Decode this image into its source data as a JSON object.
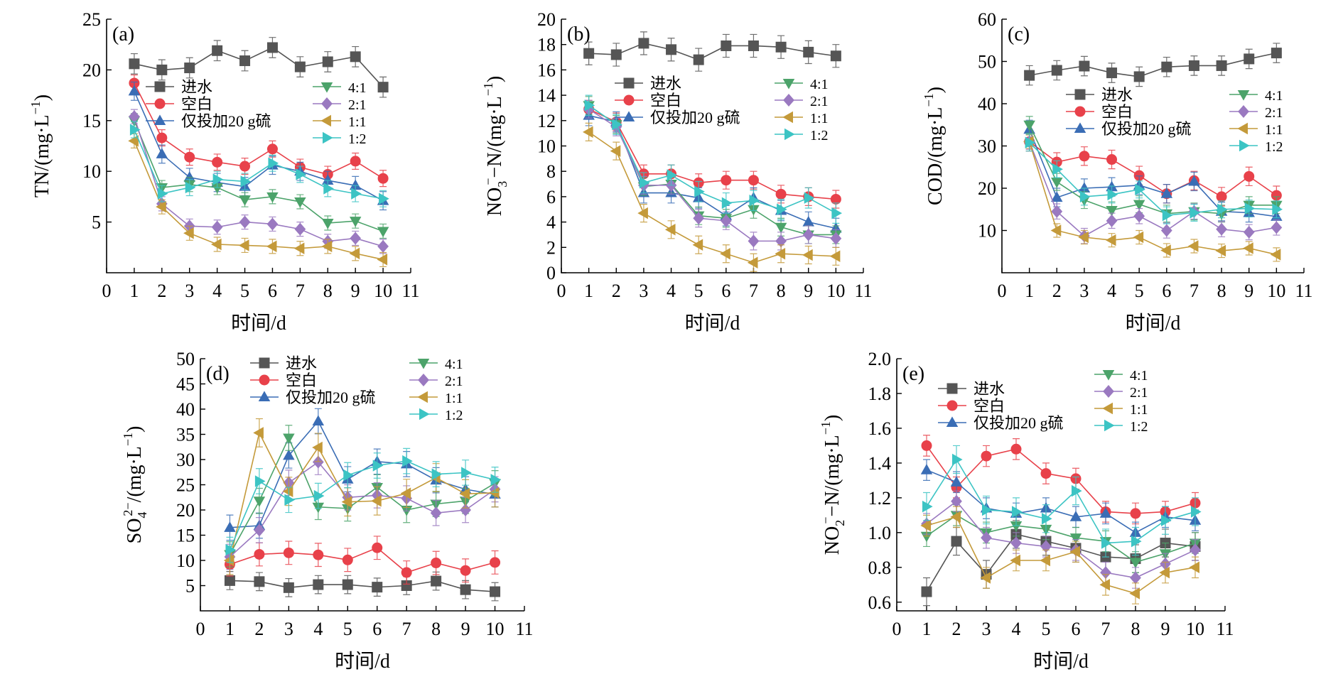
{
  "figure": {
    "palette": {
      "进水": "#555555",
      "空白": "#E8414A",
      "仅投加20 g硫": "#3A6DB5",
      "4:1": "#4CA36A",
      "2:1": "#9A79C0",
      "1:1": "#C49A3A",
      "1:2": "#3CC4C4"
    },
    "markers": {
      "进水": "square",
      "空白": "circle",
      "仅投加20 g硫": "triangle-up",
      "4:1": "triangle-down",
      "2:1": "diamond",
      "1:1": "triangle-left",
      "1:2": "triangle-right"
    }
  },
  "chart_data": [
    {
      "id": "a",
      "type": "line",
      "panel_label": "(a)",
      "ylabel_main": "TN/(mg·L",
      "ylabel_sup": "−1",
      "ylabel_end": ")",
      "xlabel": "时间/d",
      "xlim": [
        0,
        11
      ],
      "ylim": [
        0,
        25
      ],
      "xticks": [
        0,
        1,
        2,
        3,
        4,
        5,
        6,
        7,
        8,
        9,
        10,
        11
      ],
      "yticks": [
        5,
        10,
        15,
        20,
        25
      ],
      "x": [
        1,
        2,
        3,
        4,
        5,
        6,
        7,
        8,
        9,
        10
      ],
      "series": [
        {
          "name": "进水",
          "values": [
            20.6,
            20.0,
            20.2,
            21.9,
            20.9,
            22.2,
            20.3,
            20.8,
            21.3,
            18.3
          ],
          "err": 1.0
        },
        {
          "name": "空白",
          "values": [
            18.7,
            13.3,
            11.4,
            10.9,
            10.5,
            12.2,
            10.4,
            9.7,
            11.0,
            9.3
          ],
          "err": 0.8
        },
        {
          "name": "仅投加20 g硫",
          "values": [
            17.9,
            11.7,
            9.4,
            8.9,
            8.5,
            10.6,
            10.0,
            9.1,
            8.6,
            7.1
          ],
          "err": 0.9
        },
        {
          "name": "4:1",
          "values": [
            15.0,
            8.4,
            8.7,
            8.4,
            7.2,
            7.5,
            7.0,
            4.9,
            5.1,
            4.1
          ],
          "err": 0.7
        },
        {
          "name": "2:1",
          "values": [
            15.4,
            6.8,
            4.6,
            4.5,
            5.0,
            4.8,
            4.3,
            3.1,
            3.4,
            2.6
          ],
          "err": 0.7
        },
        {
          "name": "1:1",
          "values": [
            13.0,
            6.5,
            3.9,
            2.8,
            2.7,
            2.6,
            2.4,
            2.6,
            1.9,
            1.3
          ],
          "err": 0.7
        },
        {
          "name": "1:2",
          "values": [
            14.1,
            7.8,
            8.4,
            9.2,
            9.0,
            10.8,
            9.7,
            8.3,
            7.8,
            7.3
          ],
          "err": 0.8
        }
      ],
      "legend": {
        "left": [
          "进水",
          "空白",
          "仅投加20 g硫"
        ],
        "right": [
          "4:1",
          "2:1",
          "1:1",
          "1:2"
        ]
      }
    },
    {
      "id": "b",
      "type": "line",
      "panel_label": "(b)",
      "ylabel_main": "NO",
      "ylabel_sub": "3",
      "ylabel_sup": "−",
      "ylabel_mid": "−N/(mg·L",
      "ylabel_sup2": "−1",
      "ylabel_end": ")",
      "xlabel": "时间/d",
      "xlim": [
        0,
        11
      ],
      "ylim": [
        0,
        20
      ],
      "xticks": [
        0,
        1,
        2,
        3,
        4,
        5,
        6,
        7,
        8,
        9,
        10,
        11
      ],
      "yticks": [
        0,
        2,
        4,
        6,
        8,
        10,
        12,
        14,
        16,
        18,
        20
      ],
      "x": [
        1,
        2,
        3,
        4,
        5,
        6,
        7,
        8,
        9,
        10
      ],
      "series": [
        {
          "name": "进水",
          "values": [
            17.3,
            17.2,
            18.1,
            17.6,
            16.8,
            17.9,
            17.9,
            17.8,
            17.4,
            17.1
          ],
          "err": 0.9
        },
        {
          "name": "空白",
          "values": [
            12.9,
            11.9,
            7.8,
            7.8,
            7.1,
            7.3,
            7.3,
            6.2,
            6.0,
            5.8
          ],
          "err": 0.7
        },
        {
          "name": "仅投加20 g硫",
          "values": [
            12.4,
            11.9,
            6.3,
            6.3,
            5.9,
            4.5,
            5.9,
            4.9,
            4.0,
            3.5
          ],
          "err": 0.8
        },
        {
          "name": "4:1",
          "values": [
            13.2,
            11.7,
            6.8,
            7.0,
            4.5,
            4.3,
            5.0,
            3.6,
            3.0,
            3.0
          ],
          "err": 0.7
        },
        {
          "name": "2:1",
          "values": [
            12.9,
            11.5,
            6.9,
            6.9,
            4.3,
            4.1,
            2.5,
            2.5,
            3.0,
            2.7
          ],
          "err": 0.7
        },
        {
          "name": "1:1",
          "values": [
            11.1,
            9.6,
            4.7,
            3.4,
            2.2,
            1.5,
            0.8,
            1.5,
            1.4,
            1.3
          ],
          "err": 0.7
        },
        {
          "name": "1:2",
          "values": [
            13.2,
            11.7,
            7.1,
            7.7,
            6.4,
            5.5,
            5.7,
            5.0,
            5.9,
            4.7
          ],
          "err": 0.8
        }
      ],
      "legend": {
        "left": [
          "进水",
          "空白",
          "仅投加20 g硫"
        ],
        "right": [
          "4:1",
          "2:1",
          "1:1",
          "1:2"
        ]
      }
    },
    {
      "id": "c",
      "type": "line",
      "panel_label": "(c)",
      "ylabel_main": "COD/(mg·L",
      "ylabel_sup": "−1",
      "ylabel_end": ")",
      "xlabel": "时间/d",
      "xlim": [
        0,
        11
      ],
      "ylim": [
        0,
        60
      ],
      "xticks": [
        0,
        1,
        2,
        3,
        4,
        5,
        6,
        7,
        8,
        9,
        10,
        11
      ],
      "yticks": [
        10,
        20,
        30,
        40,
        50,
        60
      ],
      "x": [
        1,
        2,
        3,
        4,
        5,
        6,
        7,
        8,
        9,
        10
      ],
      "series": [
        {
          "name": "进水",
          "values": [
            46.7,
            47.9,
            48.9,
            47.3,
            46.4,
            48.7,
            49.0,
            49.0,
            50.6,
            52.0
          ],
          "err": 2.3
        },
        {
          "name": "空白",
          "values": [
            31.0,
            26.2,
            27.6,
            26.8,
            23.0,
            18.7,
            21.8,
            18.0,
            22.8,
            18.3
          ],
          "err": 2.2
        },
        {
          "name": "仅投加20 g硫",
          "values": [
            33.9,
            17.8,
            20.0,
            20.3,
            20.7,
            18.7,
            21.6,
            14.5,
            14.2,
            13.3
          ],
          "err": 2.2
        },
        {
          "name": "4:1",
          "values": [
            35.0,
            21.5,
            17.2,
            14.8,
            16.2,
            14.0,
            14.5,
            14.0,
            16.0,
            16.0
          ],
          "err": 2.0
        },
        {
          "name": "2:1",
          "values": [
            31.0,
            14.5,
            8.7,
            12.3,
            13.4,
            10.0,
            14.5,
            10.3,
            9.6,
            10.7
          ],
          "err": 1.8
        },
        {
          "name": "1:1",
          "values": [
            31.0,
            10.0,
            8.4,
            7.7,
            8.4,
            5.3,
            6.3,
            5.2,
            5.8,
            4.3
          ],
          "err": 1.6
        },
        {
          "name": "1:2",
          "values": [
            30.8,
            24.5,
            18.0,
            18.5,
            19.7,
            13.6,
            14.2,
            15.0,
            15.2,
            15.0
          ],
          "err": 2.0
        }
      ],
      "legend": {
        "left": [
          "进水",
          "空白",
          "仅投加20 g硫"
        ],
        "right": [
          "4:1",
          "2:1",
          "1:1",
          "1:2"
        ]
      }
    },
    {
      "id": "d",
      "type": "line",
      "panel_label": "(d)",
      "ylabel_main": "SO",
      "ylabel_sub": "4",
      "ylabel_sup": "2−",
      "ylabel_mid": "/(mg·L",
      "ylabel_sup2": "−1",
      "ylabel_end": ")",
      "xlabel": "时间/d",
      "xlim": [
        0,
        11
      ],
      "ylim": [
        0,
        50
      ],
      "xticks": [
        0,
        1,
        2,
        3,
        4,
        5,
        6,
        7,
        8,
        9,
        10,
        11
      ],
      "yticks": [
        5,
        10,
        15,
        20,
        25,
        30,
        35,
        40,
        45,
        50
      ],
      "x": [
        1,
        2,
        3,
        4,
        5,
        6,
        7,
        8,
        9,
        10
      ],
      "series": [
        {
          "name": "进水",
          "values": [
            6.0,
            5.8,
            4.6,
            5.2,
            5.2,
            4.7,
            5.0,
            5.9,
            4.2,
            3.8
          ],
          "err": 1.8
        },
        {
          "name": "空白",
          "values": [
            9.2,
            11.2,
            11.5,
            11.1,
            10.1,
            12.5,
            7.6,
            9.5,
            8.0,
            9.6
          ],
          "err": 2.3
        },
        {
          "name": "仅投加20 g硫",
          "values": [
            16.5,
            16.9,
            30.8,
            37.6,
            26.1,
            29.6,
            29.1,
            25.9,
            24.1,
            23.1
          ],
          "err": 2.5
        },
        {
          "name": "4:1",
          "values": [
            11.2,
            21.8,
            34.3,
            20.6,
            20.3,
            24.5,
            20.0,
            21.2,
            21.8,
            25.3
          ],
          "err": 2.5
        },
        {
          "name": "2:1",
          "values": [
            10.7,
            16.0,
            25.4,
            29.5,
            22.5,
            22.9,
            22.3,
            19.4,
            20.0,
            24.1
          ],
          "err": 2.5
        },
        {
          "name": "1:1",
          "values": [
            10.0,
            35.3,
            23.7,
            32.4,
            21.6,
            21.8,
            23.3,
            26.4,
            23.2,
            23.4
          ],
          "err": 2.8
        },
        {
          "name": "1:2",
          "values": [
            12.1,
            25.7,
            22.0,
            22.8,
            26.9,
            28.8,
            29.7,
            27.1,
            27.4,
            26.0
          ],
          "err": 2.5
        }
      ],
      "legend": {
        "left": [
          "进水",
          "空白",
          "仅投加20 g硫"
        ],
        "right": [
          "4:1",
          "2:1",
          "1:1",
          "1:2"
        ]
      }
    },
    {
      "id": "e",
      "type": "line",
      "panel_label": "(e)",
      "ylabel_main": "NO",
      "ylabel_sub": "2",
      "ylabel_sup": "−",
      "ylabel_mid": "−N/(mg·L",
      "ylabel_sup2": "−1",
      "ylabel_end": ")",
      "xlabel": "时间/d",
      "xlim": [
        0,
        11
      ],
      "ylim": [
        0.55,
        2.0
      ],
      "xticks": [
        0,
        1,
        2,
        3,
        4,
        5,
        6,
        7,
        8,
        9,
        10,
        11
      ],
      "yticks": [
        0.6,
        0.8,
        1.0,
        1.2,
        1.4,
        1.6,
        1.8,
        2.0
      ],
      "ytick_labels": [
        "0.6",
        "0.8",
        "1.0",
        "1.2",
        "1.4",
        "1.6",
        "1.8",
        "2.0"
      ],
      "x": [
        1,
        2,
        3,
        4,
        5,
        6,
        7,
        8,
        9,
        10
      ],
      "series": [
        {
          "name": "进水",
          "values": [
            0.66,
            0.95,
            0.76,
            0.99,
            0.95,
            0.91,
            0.86,
            0.85,
            0.94,
            0.92
          ],
          "err": 0.08
        },
        {
          "name": "空白",
          "values": [
            1.5,
            1.26,
            1.44,
            1.48,
            1.34,
            1.31,
            1.12,
            1.11,
            1.12,
            1.17
          ],
          "err": 0.06
        },
        {
          "name": "仅投加20 g硫",
          "values": [
            1.36,
            1.29,
            1.14,
            1.11,
            1.14,
            1.09,
            1.11,
            1.0,
            1.09,
            1.07
          ],
          "err": 0.06
        },
        {
          "name": "4:1",
          "values": [
            0.98,
            1.1,
            1.0,
            1.04,
            1.02,
            0.97,
            0.95,
            0.83,
            0.88,
            0.94
          ],
          "err": 0.06
        },
        {
          "name": "2:1",
          "values": [
            1.05,
            1.18,
            0.97,
            0.94,
            0.92,
            0.9,
            0.77,
            0.74,
            0.82,
            0.9
          ],
          "err": 0.06
        },
        {
          "name": "1:1",
          "values": [
            1.04,
            1.09,
            0.74,
            0.84,
            0.84,
            0.89,
            0.7,
            0.65,
            0.77,
            0.8
          ],
          "err": 0.06
        },
        {
          "name": "1:2",
          "values": [
            1.15,
            1.42,
            1.13,
            1.12,
            1.08,
            1.24,
            0.94,
            0.95,
            1.07,
            1.12
          ],
          "err": 0.08
        }
      ],
      "legend": {
        "left": [
          "进水",
          "空白",
          "仅投加20 g硫"
        ],
        "right": [
          "4:1",
          "2:1",
          "1:1",
          "1:2"
        ]
      }
    }
  ]
}
